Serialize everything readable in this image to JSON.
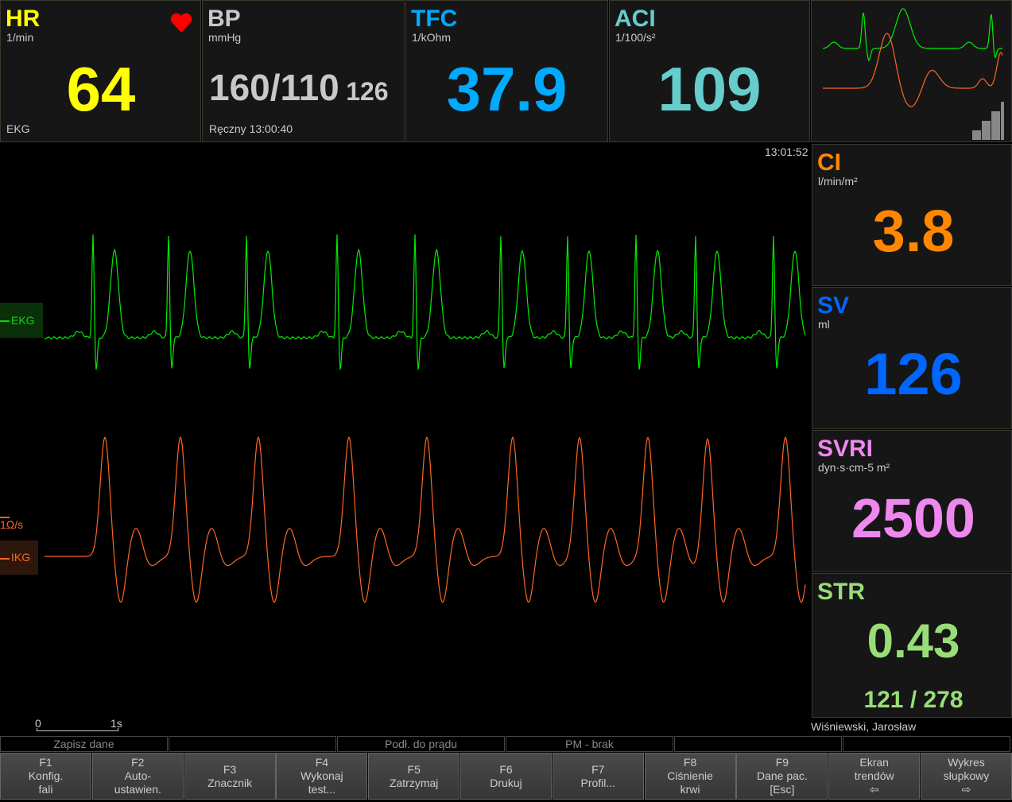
{
  "hr": {
    "title": "HR",
    "unit": "1/min",
    "value": "64",
    "source": "EKG",
    "color": "#ffff00",
    "icon": "heart-icon"
  },
  "bp": {
    "title": "BP",
    "unit": "mmHg",
    "value": "160/110",
    "mean": "126",
    "note": "Ręczny 13:00:40",
    "color": "#c8c8c8"
  },
  "tfc": {
    "title": "TFC",
    "unit": "1/kOhm",
    "value": "37.9",
    "color": "#00aaff"
  },
  "aci": {
    "title": "ACI",
    "unit": "1/100/s²",
    "value": "109",
    "color": "#66cccc"
  },
  "waves": {
    "time": "13:01:52",
    "ekg_label": "EKG",
    "ikg_label": "IKG",
    "ikg_scale": "1Ω/s",
    "scale_start": "0",
    "scale_end": "1s",
    "ekg_color": "#00ee00",
    "ikg_color": "#ff6622"
  },
  "ci": {
    "title": "CI",
    "unit": "l/min/m²",
    "value": "3.8",
    "color": "#ff8800"
  },
  "sv": {
    "title": "SV",
    "unit": "ml",
    "value": "126",
    "color": "#0066ff"
  },
  "svri": {
    "title": "SVRI",
    "unit": "dyn·s·cm-5 m²",
    "value": "2500",
    "color": "#ee88ee"
  },
  "str": {
    "title": "STR",
    "value": "0.43",
    "sub": "121 / 278",
    "color": "#99dd77"
  },
  "patient": "Wiśniewski, Jarosław",
  "status": [
    "Zapisz dane",
    "",
    "Podł. do prądu",
    "PM - brak",
    "",
    ""
  ],
  "fkeys": [
    [
      "F1",
      "Konfig.",
      "fali"
    ],
    [
      "F2",
      "Auto-",
      "ustawien."
    ],
    [
      "F3",
      "Znacznik"
    ],
    [
      "F4",
      "Wykonaj",
      "test..."
    ],
    [
      "F5",
      "Zatrzymaj"
    ],
    [
      "F6",
      "Drukuj"
    ],
    [
      "F7",
      "Profil..."
    ],
    [
      "F8",
      "Ciśnienie",
      "krwi"
    ],
    [
      "F9",
      "Dane pac.",
      "[Esc]"
    ],
    [
      "Ekran",
      "trendów",
      "⇦"
    ],
    [
      "Wykres",
      "słupkowy",
      "⇨"
    ]
  ]
}
